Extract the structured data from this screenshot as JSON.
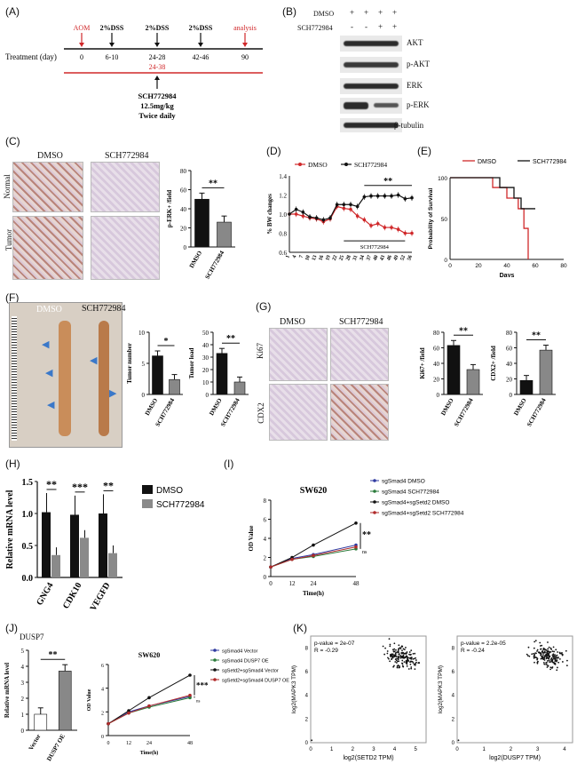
{
  "panel_labels": {
    "a": "(A)",
    "b": "(B)",
    "c": "(C)",
    "d": "(D)",
    "e": "(E)",
    "f": "(F)",
    "g": "(G)",
    "h": "(H)",
    "i": "(I)",
    "j": "(J)",
    "k": "(K)"
  },
  "panelA": {
    "treatment_label": "Treatment  (day)",
    "events": [
      {
        "label": "AOM",
        "day": "0",
        "color": "#d0282a"
      },
      {
        "label": "2%DSS",
        "day": "6-10",
        "color": "#111"
      },
      {
        "label": "2%DSS",
        "day": "24-28",
        "color": "#111"
      },
      {
        "label": "2%DSS",
        "day": "42-46",
        "color": "#111"
      },
      {
        "label": "analysis",
        "day": "90",
        "color": "#d0282a"
      }
    ],
    "red_range": "24-38",
    "drug_line1": "SCH772984",
    "drug_line2": "12.5mg/kg",
    "drug_line3": "Twice daily"
  },
  "panelB": {
    "row_labels": [
      "DMSO",
      "SCH772984"
    ],
    "dmso_marks": [
      "+",
      "+",
      "+",
      "+"
    ],
    "sch_marks": [
      "-",
      "-",
      "+",
      "+"
    ],
    "bands": [
      "AKT",
      "p-AKT",
      "ERK",
      "p-ERK",
      "β-tubulin"
    ]
  },
  "panelC": {
    "col_labels": [
      "DMSO",
      "SCH772984"
    ],
    "row_labels": [
      "Normal",
      "Tumor"
    ],
    "chart_data": {
      "type": "bar",
      "categories": [
        "DMSO",
        "SCH772984"
      ],
      "values": [
        50,
        26
      ],
      "ylabel": "p-ERK+ /field",
      "ylim": [
        0,
        80
      ],
      "yticks": [
        "0",
        "20",
        "40",
        "60",
        "80"
      ],
      "significance": "**"
    }
  },
  "panelD": {
    "chart_data": {
      "type": "line",
      "x": [
        "1",
        "4",
        "7",
        "10",
        "13",
        "16",
        "19",
        "22",
        "25",
        "28",
        "31",
        "34",
        "37",
        "40",
        "43",
        "46",
        "49",
        "52",
        "56"
      ],
      "series": [
        {
          "name": "DMSO",
          "color": "#d0282a",
          "values": [
            1.0,
            1.0,
            0.98,
            0.96,
            0.95,
            0.92,
            0.95,
            1.08,
            1.06,
            1.05,
            0.98,
            0.94,
            0.88,
            0.9,
            0.86,
            0.86,
            0.84,
            0.8,
            0.8
          ]
        },
        {
          "name": "SCH772984",
          "color": "#111111",
          "values": [
            1.0,
            1.05,
            1.02,
            0.97,
            0.96,
            0.94,
            0.96,
            1.1,
            1.1,
            1.1,
            1.08,
            1.18,
            1.19,
            1.19,
            1.19,
            1.19,
            1.2,
            1.16,
            1.17
          ]
        }
      ],
      "ylabel": "% BW changes",
      "ylim": [
        0.6,
        1.4
      ],
      "yticks": [
        "0.6",
        "0.8",
        "1.0",
        "1.2",
        "1.4"
      ],
      "bracket_label": "SCH772984",
      "significance": "**"
    }
  },
  "panelE": {
    "chart_data": {
      "type": "line",
      "series": [
        {
          "name": "DMSO",
          "color": "#d0282a",
          "values": [
            [
              0,
              100
            ],
            [
              30,
              100
            ],
            [
              30,
              88
            ],
            [
              40,
              88
            ],
            [
              40,
              75
            ],
            [
              48,
              75
            ],
            [
              48,
              62
            ],
            [
              52,
              62
            ],
            [
              52,
              38
            ],
            [
              55,
              38
            ],
            [
              55,
              0
            ]
          ]
        },
        {
          "name": "SCH772984",
          "color": "#111111",
          "values": [
            [
              0,
              100
            ],
            [
              35,
              100
            ],
            [
              35,
              88
            ],
            [
              45,
              88
            ],
            [
              45,
              75
            ],
            [
              50,
              75
            ],
            [
              50,
              62
            ],
            [
              60,
              62
            ]
          ]
        }
      ],
      "xlabel": "Days",
      "ylabel": "Probability of Survival",
      "xlim": [
        0,
        80
      ],
      "ylim": [
        0,
        100
      ],
      "xticks": [
        "0",
        "20",
        "40",
        "60",
        "80"
      ],
      "yticks": [
        "0",
        "50",
        "100"
      ]
    }
  },
  "panelF": {
    "col_labels": [
      "DMSO",
      "SCH772984"
    ],
    "charts": [
      {
        "type": "bar",
        "categories": [
          "DMSO",
          "SCH772984"
        ],
        "values": [
          6.2,
          2.4
        ],
        "ylabel": "Tumor number",
        "ylim": [
          0,
          10
        ],
        "yticks": [
          "0",
          "5",
          "10"
        ],
        "significance": "*"
      },
      {
        "type": "bar",
        "categories": [
          "DMSO",
          "SCH772984"
        ],
        "values": [
          33,
          10
        ],
        "ylabel": "Tumor load",
        "ylim": [
          0,
          50
        ],
        "yticks": [
          "0",
          "10",
          "20",
          "30",
          "40",
          "50"
        ],
        "significance": "**"
      }
    ]
  },
  "panelG": {
    "col_labels": [
      "DMSO",
      "SCH772984"
    ],
    "row_labels": [
      "Ki67",
      "CDX2"
    ],
    "charts": [
      {
        "type": "bar",
        "categories": [
          "DMSO",
          "SCH772984"
        ],
        "values": [
          63,
          32
        ],
        "ylabel": "Ki67+ /field",
        "ylim": [
          0,
          80
        ],
        "yticks": [
          "0",
          "20",
          "40",
          "60",
          "80"
        ],
        "significance": "**"
      },
      {
        "type": "bar",
        "categories": [
          "DMSO",
          "SCH772984"
        ],
        "values": [
          18,
          57
        ],
        "ylabel": "CDX2+ /field",
        "ylim": [
          0,
          80
        ],
        "yticks": [
          "0",
          "20",
          "40",
          "60",
          "80"
        ],
        "significance": "**"
      }
    ]
  },
  "panelH": {
    "chart_data": {
      "type": "bar",
      "categories": [
        "GNG4",
        "CDK10",
        "VEGFD"
      ],
      "series": [
        {
          "name": "DMSO",
          "color": "#111111",
          "values": [
            1.02,
            0.98,
            1.0
          ]
        },
        {
          "name": "SCH772984",
          "color": "#8a8a8a",
          "values": [
            0.35,
            0.62,
            0.38
          ]
        }
      ],
      "ylabel": "Relative mRNA level",
      "ylim": [
        0,
        1.5
      ],
      "yticks": [
        "0.0",
        "0.5",
        "1.0",
        "1.5"
      ],
      "significance": [
        "**",
        "***",
        "**"
      ]
    }
  },
  "panelI": {
    "chart_data": {
      "type": "line",
      "title": "SW620",
      "x": [
        "0",
        "12",
        "24",
        "48"
      ],
      "series": [
        {
          "name": "sgSmad4 DMSO",
          "color": "#2f3aa0",
          "values": [
            1,
            1.9,
            2.3,
            3.3
          ]
        },
        {
          "name": "sgSmad4 SCH772984",
          "color": "#2a7a3a",
          "values": [
            1,
            1.8,
            2.1,
            2.9
          ]
        },
        {
          "name": "sgSmad4+sgSetd2 DMSO",
          "color": "#111111",
          "values": [
            1,
            2.0,
            3.3,
            5.6
          ]
        },
        {
          "name": "sgSmad4+sgSetd2 SCH772984",
          "color": "#b02a2a",
          "values": [
            1,
            1.8,
            2.2,
            3.1
          ]
        }
      ],
      "xlabel": "Time(h)",
      "ylabel": "OD Value",
      "ylim": [
        0,
        8
      ],
      "yticks": [
        "0",
        "2",
        "4",
        "6",
        "8"
      ],
      "significance": [
        "**",
        "ns"
      ]
    }
  },
  "panelJ": {
    "title": "DUSP7",
    "bar_chart": {
      "type": "bar",
      "categories": [
        "Vector",
        "DUSP7 OE"
      ],
      "values": [
        1.0,
        3.7
      ],
      "ylabel": "Relative mRNA level",
      "ylim": [
        0,
        5
      ],
      "yticks": [
        "0",
        "1",
        "2",
        "3",
        "4",
        "5"
      ],
      "significance": "**"
    },
    "chart_data": {
      "type": "line",
      "title": "SW620",
      "x": [
        "0",
        "12",
        "24",
        "48"
      ],
      "series": [
        {
          "name": "sgSmad4 Vector",
          "color": "#2f3aa0",
          "values": [
            1,
            2.0,
            2.5,
            3.3
          ]
        },
        {
          "name": "sgSmad4 DUSP7 OE",
          "color": "#2a7a3a",
          "values": [
            1,
            1.9,
            2.4,
            3.2
          ]
        },
        {
          "name": "sgSetd2+sgSmad4 Vector",
          "color": "#111111",
          "values": [
            1,
            2.1,
            3.2,
            5.1
          ]
        },
        {
          "name": "sgSetd2+sgSmad4 DUSP7 OE",
          "color": "#b02a2a",
          "values": [
            1,
            1.9,
            2.5,
            3.4
          ]
        }
      ],
      "xlabel": "Time(h)",
      "ylabel": "OD Value",
      "ylim": [
        0,
        6
      ],
      "yticks": [
        "0",
        "2",
        "4",
        "6"
      ],
      "significance": [
        "***",
        "ns"
      ]
    }
  },
  "panelK": {
    "plots": [
      {
        "type": "scatter",
        "stat1": "p-value = 2e-07",
        "stat2": "R = -0.29",
        "xlabel": "log2(SETD2 TPM)",
        "ylabel": "log2(MAPK3 TPM)",
        "xticks": [
          "0",
          "1",
          "2",
          "3",
          "4",
          "5"
        ],
        "yticks": [
          "0",
          "2",
          "4",
          "6",
          "8"
        ]
      },
      {
        "type": "scatter",
        "stat1": "p-value = 2.2e-05",
        "stat2": "R = -0.24",
        "xlabel": "log2(DUSP7 TPM)",
        "ylabel": "log2(MAPK3 TPM)",
        "xticks": [
          "0",
          "1",
          "2",
          "3",
          "4"
        ],
        "yticks": [
          "0",
          "2",
          "4",
          "6",
          "8"
        ]
      }
    ]
  }
}
